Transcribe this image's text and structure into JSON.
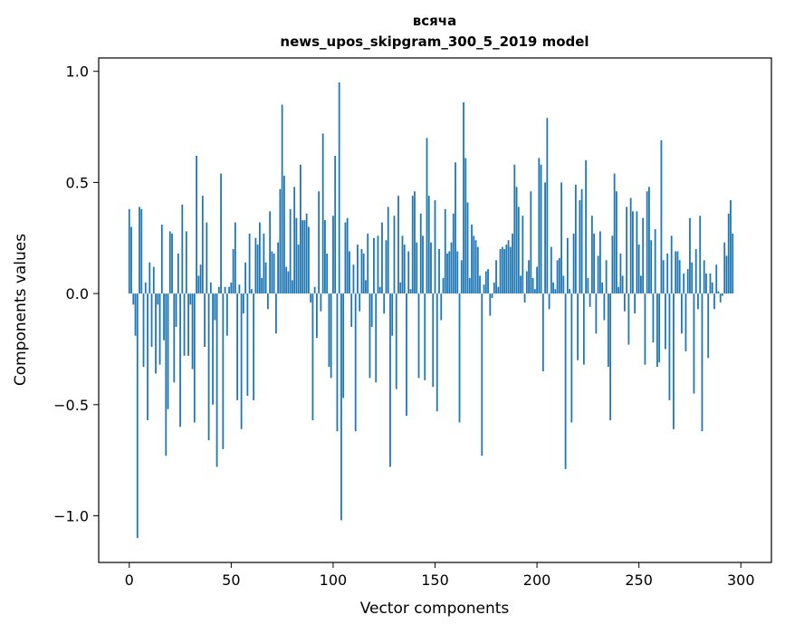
{
  "chart_data": {
    "type": "bar",
    "title": "всяча",
    "subtitle": "news_upos_skipgram_300_5_2019 model",
    "xlabel": "Vector components",
    "ylabel": "Components values",
    "xlim": [
      -15,
      315
    ],
    "ylim": [
      -1.21,
      1.06
    ],
    "x_ticks": [
      0,
      50,
      100,
      150,
      200,
      250,
      300
    ],
    "y_ticks": [
      -1.0,
      -0.5,
      0.0,
      0.5,
      1.0
    ],
    "y_tick_labels": [
      "−1.0",
      "−0.5",
      "0.0",
      "0.5",
      "1.0"
    ],
    "grid": false,
    "legend": "none",
    "bar_color": "#1f77b4",
    "values": [
      0.38,
      0.3,
      -0.05,
      -0.19,
      -1.1,
      0.39,
      0.38,
      -0.33,
      0.05,
      -0.57,
      0.14,
      -0.24,
      0.12,
      -0.36,
      -0.05,
      -0.32,
      0.31,
      -0.21,
      -0.73,
      -0.52,
      0.28,
      0.27,
      -0.4,
      -0.15,
      0.18,
      -0.6,
      0.4,
      -0.28,
      0.28,
      -0.28,
      -0.05,
      -0.34,
      -0.58,
      0.62,
      0.08,
      0.13,
      0.44,
      -0.24,
      0.32,
      -0.66,
      0.05,
      -0.5,
      -0.12,
      -0.78,
      0.03,
      0.54,
      -0.7,
      0.03,
      -0.19,
      0.03,
      0.05,
      0.2,
      0.32,
      -0.48,
      0.04,
      -0.61,
      -0.09,
      0.14,
      -0.46,
      0.27,
      0.02,
      -0.48,
      0.25,
      0.22,
      0.32,
      0.07,
      0.27,
      0.14,
      -0.07,
      0.37,
      0.19,
      0.18,
      -0.18,
      0.23,
      0.47,
      0.85,
      0.53,
      0.12,
      0.1,
      0.38,
      0.06,
      0.48,
      0.34,
      0.22,
      0.58,
      0.33,
      0.33,
      0.36,
      0.3,
      -0.04,
      -0.57,
      0.03,
      -0.2,
      0.46,
      -0.08,
      0.72,
      0.33,
      0.18,
      -0.33,
      -0.38,
      0.35,
      0.62,
      -0.62,
      0.95,
      -1.02,
      -0.47,
      0.32,
      0.34,
      0.19,
      -0.15,
      0.13,
      -0.62,
      0.22,
      -0.08,
      0.2,
      0.18,
      0.06,
      0.27,
      -0.38,
      -0.15,
      0.25,
      -0.4,
      0.26,
      0.03,
      0.32,
      -0.09,
      0.24,
      0.39,
      -0.78,
      -0.19,
      0.35,
      -0.43,
      0.44,
      0.05,
      0.26,
      0.22,
      -0.55,
      0.19,
      0.02,
      0.44,
      0.46,
      0.23,
      -0.38,
      0.36,
      0.26,
      -0.39,
      0.7,
      0.44,
      0.23,
      -0.42,
      0.42,
      -0.53,
      0.2,
      -0.12,
      0.07,
      0.38,
      0.18,
      0.19,
      0.23,
      0.36,
      0.59,
      0.19,
      -0.58,
      0.15,
      0.86,
      0.61,
      0.41,
      0.07,
      0.31,
      0.26,
      0.24,
      0.21,
      0.08,
      -0.73,
      0.04,
      0.1,
      0.11,
      -0.1,
      -0.02,
      0.05,
      0.15,
      0.03,
      0.2,
      0.21,
      0.2,
      0.22,
      0.24,
      0.21,
      0.27,
      0.58,
      0.48,
      0.39,
      0.08,
      0.35,
      -0.04,
      0.1,
      0.15,
      0.46,
      0.07,
      0.02,
      0.12,
      0.61,
      0.58,
      -0.35,
      0.5,
      0.79,
      -0.07,
      0.21,
      0.05,
      0.02,
      0.15,
      0.16,
      0.5,
      0.08,
      -0.79,
      0.25,
      0.02,
      -0.58,
      0.27,
      0.49,
      -0.3,
      0.42,
      0.47,
      -0.32,
      0.6,
      0.07,
      -0.06,
      0.35,
      0.27,
      -0.18,
      0.17,
      0.28,
      0.05,
      -0.12,
      0.15,
      -0.33,
      -0.57,
      0.26,
      0.54,
      0.46,
      0.03,
      0.18,
      0.08,
      -0.08,
      0.39,
      -0.23,
      0.43,
      0.37,
      -0.09,
      0.37,
      0.22,
      0.08,
      0.34,
      -0.32,
      0.46,
      0.48,
      0.24,
      -0.22,
      0.29,
      -0.33,
      -0.31,
      0.69,
      0.15,
      -0.25,
      0.18,
      -0.48,
      0.26,
      -0.61,
      0.19,
      0.19,
      0.15,
      -0.18,
      0.09,
      -0.26,
      0.11,
      0.34,
      0.14,
      -0.45,
      0.2,
      -0.07,
      0.35,
      -0.62,
      0.15,
      0.09,
      -0.29,
      0.09,
      0.05,
      -0.07,
      0.13,
      0.01,
      -0.04,
      -0.01,
      0.23,
      0.17,
      0.36,
      0.42,
      0.27
    ]
  }
}
